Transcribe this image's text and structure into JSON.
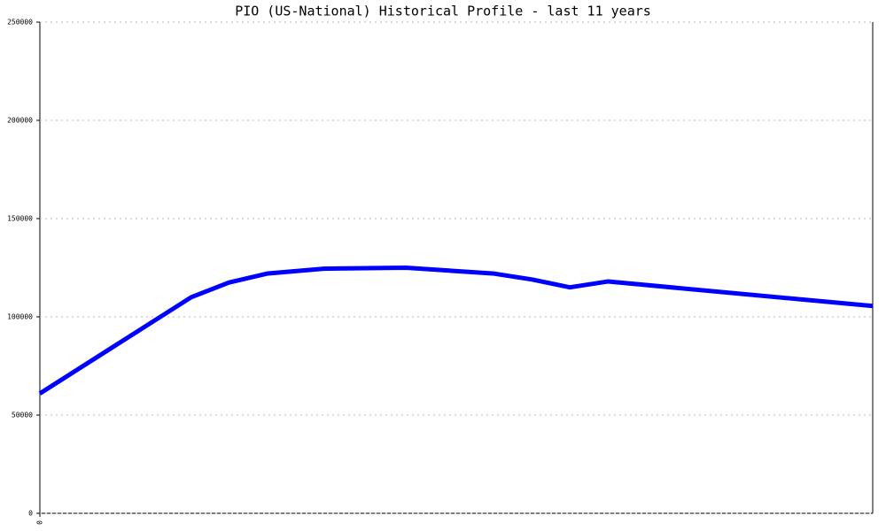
{
  "chart_data": {
    "type": "line",
    "title": "PIO (US-National) Historical Profile - last 11 years",
    "x": [
      0,
      24,
      30,
      36,
      45,
      58,
      72,
      78,
      84,
      90,
      132
    ],
    "series": [
      {
        "color": "#0000ff",
        "values": [
          61000,
          110000,
          117500,
          122000,
          124500,
          125000,
          122000,
          119000,
          115000,
          118000,
          105500
        ]
      }
    ],
    "xlim": [
      0,
      132
    ],
    "xticks": [
      0
    ],
    "ylim": [
      0,
      250000
    ],
    "yticks": [
      0,
      50000,
      100000,
      150000,
      200000,
      250000
    ],
    "grid": true
  }
}
